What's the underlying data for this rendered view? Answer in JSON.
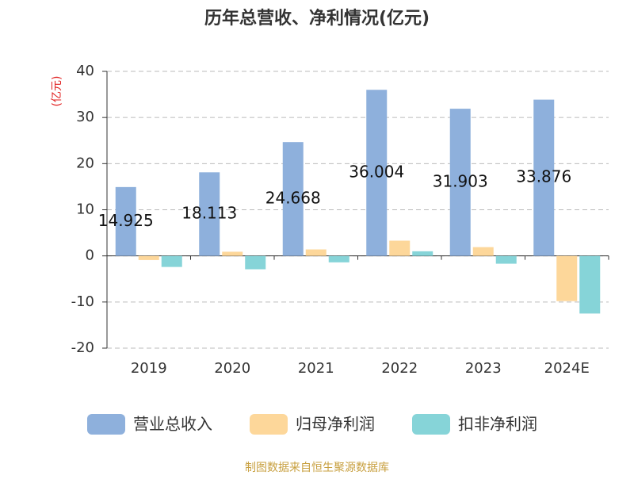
{
  "chart_data": {
    "type": "bar",
    "title": "历年总营收、净利情况(亿元)",
    "y_label": "(亿元)",
    "source": "制图数据来自恒生聚源数据库",
    "categories": [
      "2019",
      "2020",
      "2021",
      "2022",
      "2023",
      "2024E"
    ],
    "series": [
      {
        "name": "营业总收入",
        "color": "#8eb0dc",
        "values": [
          14.925,
          18.113,
          24.668,
          36.004,
          31.903,
          33.876
        ]
      },
      {
        "name": "归母净利润",
        "color": "#fdd79a",
        "values": [
          -0.9,
          0.9,
          1.4,
          3.3,
          1.9,
          -9.8
        ]
      },
      {
        "name": "扣非净利润",
        "color": "#86d4d8",
        "values": [
          -2.4,
          -2.9,
          -1.4,
          1.0,
          -1.7,
          -12.5
        ]
      }
    ],
    "ylim": [
      -20,
      40
    ],
    "yticks": [
      -20,
      -10,
      0,
      10,
      20,
      30,
      40
    ],
    "grid": true
  }
}
